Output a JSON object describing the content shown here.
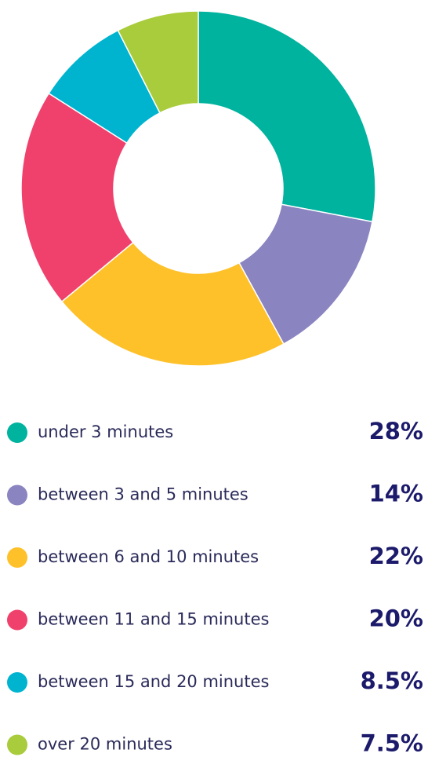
{
  "chart_data": {
    "type": "pie",
    "categories": [
      "under 3 minutes",
      "between 3 and 5 minutes",
      "between 6 and 10 minutes",
      "between 11 and 15 minutes",
      "between 15 and 20 minutes",
      "over 20 minutes"
    ],
    "values": [
      28,
      14,
      22,
      20,
      8.5,
      7.5
    ],
    "value_labels": [
      "28%",
      "14%",
      "22%",
      "20%",
      "8.5%",
      "7.5%"
    ],
    "colors": [
      "#00b39f",
      "#8a84c0",
      "#fec12a",
      "#f0416d",
      "#00b4d0",
      "#a8cc3b"
    ]
  }
}
